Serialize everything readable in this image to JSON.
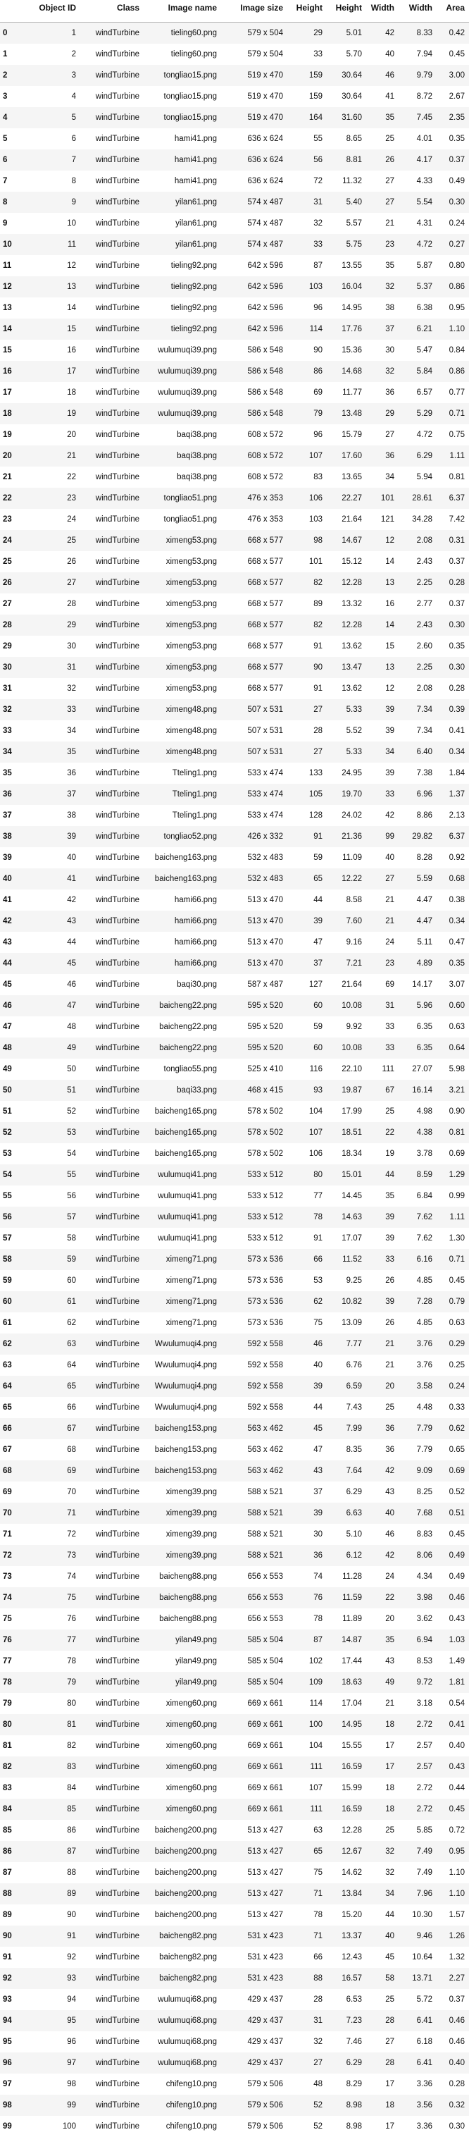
{
  "table": {
    "columns": [
      "",
      "Object ID",
      "Class",
      "Image name",
      "Image size",
      "Height",
      "Height",
      "Width",
      "Width",
      "Area"
    ],
    "rows": [
      [
        "0",
        "1",
        "windTurbine",
        "tieling60.png",
        "579 x 504",
        "29",
        "5.01",
        "42",
        "8.33",
        "0.42"
      ],
      [
        "1",
        "2",
        "windTurbine",
        "tieling60.png",
        "579 x 504",
        "33",
        "5.70",
        "40",
        "7.94",
        "0.45"
      ],
      [
        "2",
        "3",
        "windTurbine",
        "tongliao15.png",
        "519 x 470",
        "159",
        "30.64",
        "46",
        "9.79",
        "3.00"
      ],
      [
        "3",
        "4",
        "windTurbine",
        "tongliao15.png",
        "519 x 470",
        "159",
        "30.64",
        "41",
        "8.72",
        "2.67"
      ],
      [
        "4",
        "5",
        "windTurbine",
        "tongliao15.png",
        "519 x 470",
        "164",
        "31.60",
        "35",
        "7.45",
        "2.35"
      ],
      [
        "5",
        "6",
        "windTurbine",
        "hami41.png",
        "636 x 624",
        "55",
        "8.65",
        "25",
        "4.01",
        "0.35"
      ],
      [
        "6",
        "7",
        "windTurbine",
        "hami41.png",
        "636 x 624",
        "56",
        "8.81",
        "26",
        "4.17",
        "0.37"
      ],
      [
        "7",
        "8",
        "windTurbine",
        "hami41.png",
        "636 x 624",
        "72",
        "11.32",
        "27",
        "4.33",
        "0.49"
      ],
      [
        "8",
        "9",
        "windTurbine",
        "yilan61.png",
        "574 x 487",
        "31",
        "5.40",
        "27",
        "5.54",
        "0.30"
      ],
      [
        "9",
        "10",
        "windTurbine",
        "yilan61.png",
        "574 x 487",
        "32",
        "5.57",
        "21",
        "4.31",
        "0.24"
      ],
      [
        "10",
        "11",
        "windTurbine",
        "yilan61.png",
        "574 x 487",
        "33",
        "5.75",
        "23",
        "4.72",
        "0.27"
      ],
      [
        "11",
        "12",
        "windTurbine",
        "tieling92.png",
        "642 x 596",
        "87",
        "13.55",
        "35",
        "5.87",
        "0.80"
      ],
      [
        "12",
        "13",
        "windTurbine",
        "tieling92.png",
        "642 x 596",
        "103",
        "16.04",
        "32",
        "5.37",
        "0.86"
      ],
      [
        "13",
        "14",
        "windTurbine",
        "tieling92.png",
        "642 x 596",
        "96",
        "14.95",
        "38",
        "6.38",
        "0.95"
      ],
      [
        "14",
        "15",
        "windTurbine",
        "tieling92.png",
        "642 x 596",
        "114",
        "17.76",
        "37",
        "6.21",
        "1.10"
      ],
      [
        "15",
        "16",
        "windTurbine",
        "wulumuqi39.png",
        "586 x 548",
        "90",
        "15.36",
        "30",
        "5.47",
        "0.84"
      ],
      [
        "16",
        "17",
        "windTurbine",
        "wulumuqi39.png",
        "586 x 548",
        "86",
        "14.68",
        "32",
        "5.84",
        "0.86"
      ],
      [
        "17",
        "18",
        "windTurbine",
        "wulumuqi39.png",
        "586 x 548",
        "69",
        "11.77",
        "36",
        "6.57",
        "0.77"
      ],
      [
        "18",
        "19",
        "windTurbine",
        "wulumuqi39.png",
        "586 x 548",
        "79",
        "13.48",
        "29",
        "5.29",
        "0.71"
      ],
      [
        "19",
        "20",
        "windTurbine",
        "baqi38.png",
        "608 x 572",
        "96",
        "15.79",
        "27",
        "4.72",
        "0.75"
      ],
      [
        "20",
        "21",
        "windTurbine",
        "baqi38.png",
        "608 x 572",
        "107",
        "17.60",
        "36",
        "6.29",
        "1.11"
      ],
      [
        "21",
        "22",
        "windTurbine",
        "baqi38.png",
        "608 x 572",
        "83",
        "13.65",
        "34",
        "5.94",
        "0.81"
      ],
      [
        "22",
        "23",
        "windTurbine",
        "tongliao51.png",
        "476 x 353",
        "106",
        "22.27",
        "101",
        "28.61",
        "6.37"
      ],
      [
        "23",
        "24",
        "windTurbine",
        "tongliao51.png",
        "476 x 353",
        "103",
        "21.64",
        "121",
        "34.28",
        "7.42"
      ],
      [
        "24",
        "25",
        "windTurbine",
        "ximeng53.png",
        "668 x 577",
        "98",
        "14.67",
        "12",
        "2.08",
        "0.31"
      ],
      [
        "25",
        "26",
        "windTurbine",
        "ximeng53.png",
        "668 x 577",
        "101",
        "15.12",
        "14",
        "2.43",
        "0.37"
      ],
      [
        "26",
        "27",
        "windTurbine",
        "ximeng53.png",
        "668 x 577",
        "82",
        "12.28",
        "13",
        "2.25",
        "0.28"
      ],
      [
        "27",
        "28",
        "windTurbine",
        "ximeng53.png",
        "668 x 577",
        "89",
        "13.32",
        "16",
        "2.77",
        "0.37"
      ],
      [
        "28",
        "29",
        "windTurbine",
        "ximeng53.png",
        "668 x 577",
        "82",
        "12.28",
        "14",
        "2.43",
        "0.30"
      ],
      [
        "29",
        "30",
        "windTurbine",
        "ximeng53.png",
        "668 x 577",
        "91",
        "13.62",
        "15",
        "2.60",
        "0.35"
      ],
      [
        "30",
        "31",
        "windTurbine",
        "ximeng53.png",
        "668 x 577",
        "90",
        "13.47",
        "13",
        "2.25",
        "0.30"
      ],
      [
        "31",
        "32",
        "windTurbine",
        "ximeng53.png",
        "668 x 577",
        "91",
        "13.62",
        "12",
        "2.08",
        "0.28"
      ],
      [
        "32",
        "33",
        "windTurbine",
        "ximeng48.png",
        "507 x 531",
        "27",
        "5.33",
        "39",
        "7.34",
        "0.39"
      ],
      [
        "33",
        "34",
        "windTurbine",
        "ximeng48.png",
        "507 x 531",
        "28",
        "5.52",
        "39",
        "7.34",
        "0.41"
      ],
      [
        "34",
        "35",
        "windTurbine",
        "ximeng48.png",
        "507 x 531",
        "27",
        "5.33",
        "34",
        "6.40",
        "0.34"
      ],
      [
        "35",
        "36",
        "windTurbine",
        "Tteling1.png",
        "533 x 474",
        "133",
        "24.95",
        "39",
        "7.38",
        "1.84"
      ],
      [
        "36",
        "37",
        "windTurbine",
        "Tteling1.png",
        "533 x 474",
        "105",
        "19.70",
        "33",
        "6.96",
        "1.37"
      ],
      [
        "37",
        "38",
        "windTurbine",
        "Tteling1.png",
        "533 x 474",
        "128",
        "24.02",
        "42",
        "8.86",
        "2.13"
      ],
      [
        "38",
        "39",
        "windTurbine",
        "tongliao52.png",
        "426 x 332",
        "91",
        "21.36",
        "99",
        "29.82",
        "6.37"
      ],
      [
        "39",
        "40",
        "windTurbine",
        "baicheng163.png",
        "532 x 483",
        "59",
        "11.09",
        "40",
        "8.28",
        "0.92"
      ],
      [
        "40",
        "41",
        "windTurbine",
        "baicheng163.png",
        "532 x 483",
        "65",
        "12.22",
        "27",
        "5.59",
        "0.68"
      ],
      [
        "41",
        "42",
        "windTurbine",
        "hami66.png",
        "513 x 470",
        "44",
        "8.58",
        "21",
        "4.47",
        "0.38"
      ],
      [
        "42",
        "43",
        "windTurbine",
        "hami66.png",
        "513 x 470",
        "39",
        "7.60",
        "21",
        "4.47",
        "0.34"
      ],
      [
        "43",
        "44",
        "windTurbine",
        "hami66.png",
        "513 x 470",
        "47",
        "9.16",
        "24",
        "5.11",
        "0.47"
      ],
      [
        "44",
        "45",
        "windTurbine",
        "hami66.png",
        "513 x 470",
        "37",
        "7.21",
        "23",
        "4.89",
        "0.35"
      ],
      [
        "45",
        "46",
        "windTurbine",
        "baqi30.png",
        "587 x 487",
        "127",
        "21.64",
        "69",
        "14.17",
        "3.07"
      ],
      [
        "46",
        "47",
        "windTurbine",
        "baicheng22.png",
        "595 x 520",
        "60",
        "10.08",
        "31",
        "5.96",
        "0.60"
      ],
      [
        "47",
        "48",
        "windTurbine",
        "baicheng22.png",
        "595 x 520",
        "59",
        "9.92",
        "33",
        "6.35",
        "0.63"
      ],
      [
        "48",
        "49",
        "windTurbine",
        "baicheng22.png",
        "595 x 520",
        "60",
        "10.08",
        "33",
        "6.35",
        "0.64"
      ],
      [
        "49",
        "50",
        "windTurbine",
        "tongliao55.png",
        "525 x 410",
        "116",
        "22.10",
        "111",
        "27.07",
        "5.98"
      ],
      [
        "50",
        "51",
        "windTurbine",
        "baqi33.png",
        "468 x 415",
        "93",
        "19.87",
        "67",
        "16.14",
        "3.21"
      ],
      [
        "51",
        "52",
        "windTurbine",
        "baicheng165.png",
        "578 x 502",
        "104",
        "17.99",
        "25",
        "4.98",
        "0.90"
      ],
      [
        "52",
        "53",
        "windTurbine",
        "baicheng165.png",
        "578 x 502",
        "107",
        "18.51",
        "22",
        "4.38",
        "0.81"
      ],
      [
        "53",
        "54",
        "windTurbine",
        "baicheng165.png",
        "578 x 502",
        "106",
        "18.34",
        "19",
        "3.78",
        "0.69"
      ],
      [
        "54",
        "55",
        "windTurbine",
        "wulumuqi41.png",
        "533 x 512",
        "80",
        "15.01",
        "44",
        "8.59",
        "1.29"
      ],
      [
        "55",
        "56",
        "windTurbine",
        "wulumuqi41.png",
        "533 x 512",
        "77",
        "14.45",
        "35",
        "6.84",
        "0.99"
      ],
      [
        "56",
        "57",
        "windTurbine",
        "wulumuqi41.png",
        "533 x 512",
        "78",
        "14.63",
        "39",
        "7.62",
        "1.11"
      ],
      [
        "57",
        "58",
        "windTurbine",
        "wulumuqi41.png",
        "533 x 512",
        "91",
        "17.07",
        "39",
        "7.62",
        "1.30"
      ],
      [
        "58",
        "59",
        "windTurbine",
        "ximeng71.png",
        "573 x 536",
        "66",
        "11.52",
        "33",
        "6.16",
        "0.71"
      ],
      [
        "59",
        "60",
        "windTurbine",
        "ximeng71.png",
        "573 x 536",
        "53",
        "9.25",
        "26",
        "4.85",
        "0.45"
      ],
      [
        "60",
        "61",
        "windTurbine",
        "ximeng71.png",
        "573 x 536",
        "62",
        "10.82",
        "39",
        "7.28",
        "0.79"
      ],
      [
        "61",
        "62",
        "windTurbine",
        "ximeng71.png",
        "573 x 536",
        "75",
        "13.09",
        "26",
        "4.85",
        "0.63"
      ],
      [
        "62",
        "63",
        "windTurbine",
        "Wwulumuqi4.png",
        "592 x 558",
        "46",
        "7.77",
        "21",
        "3.76",
        "0.29"
      ],
      [
        "63",
        "64",
        "windTurbine",
        "Wwulumuqi4.png",
        "592 x 558",
        "40",
        "6.76",
        "21",
        "3.76",
        "0.25"
      ],
      [
        "64",
        "65",
        "windTurbine",
        "Wwulumuqi4.png",
        "592 x 558",
        "39",
        "6.59",
        "20",
        "3.58",
        "0.24"
      ],
      [
        "65",
        "66",
        "windTurbine",
        "Wwulumuqi4.png",
        "592 x 558",
        "44",
        "7.43",
        "25",
        "4.48",
        "0.33"
      ],
      [
        "66",
        "67",
        "windTurbine",
        "baicheng153.png",
        "563 x 462",
        "45",
        "7.99",
        "36",
        "7.79",
        "0.62"
      ],
      [
        "67",
        "68",
        "windTurbine",
        "baicheng153.png",
        "563 x 462",
        "47",
        "8.35",
        "36",
        "7.79",
        "0.65"
      ],
      [
        "68",
        "69",
        "windTurbine",
        "baicheng153.png",
        "563 x 462",
        "43",
        "7.64",
        "42",
        "9.09",
        "0.69"
      ],
      [
        "69",
        "70",
        "windTurbine",
        "ximeng39.png",
        "588 x 521",
        "37",
        "6.29",
        "43",
        "8.25",
        "0.52"
      ],
      [
        "70",
        "71",
        "windTurbine",
        "ximeng39.png",
        "588 x 521",
        "39",
        "6.63",
        "40",
        "7.68",
        "0.51"
      ],
      [
        "71",
        "72",
        "windTurbine",
        "ximeng39.png",
        "588 x 521",
        "30",
        "5.10",
        "46",
        "8.83",
        "0.45"
      ],
      [
        "72",
        "73",
        "windTurbine",
        "ximeng39.png",
        "588 x 521",
        "36",
        "6.12",
        "42",
        "8.06",
        "0.49"
      ],
      [
        "73",
        "74",
        "windTurbine",
        "baicheng88.png",
        "656 x 553",
        "74",
        "11.28",
        "24",
        "4.34",
        "0.49"
      ],
      [
        "74",
        "75",
        "windTurbine",
        "baicheng88.png",
        "656 x 553",
        "76",
        "11.59",
        "22",
        "3.98",
        "0.46"
      ],
      [
        "75",
        "76",
        "windTurbine",
        "baicheng88.png",
        "656 x 553",
        "78",
        "11.89",
        "20",
        "3.62",
        "0.43"
      ],
      [
        "76",
        "77",
        "windTurbine",
        "yilan49.png",
        "585 x 504",
        "87",
        "14.87",
        "35",
        "6.94",
        "1.03"
      ],
      [
        "77",
        "78",
        "windTurbine",
        "yilan49.png",
        "585 x 504",
        "102",
        "17.44",
        "43",
        "8.53",
        "1.49"
      ],
      [
        "78",
        "79",
        "windTurbine",
        "yilan49.png",
        "585 x 504",
        "109",
        "18.63",
        "49",
        "9.72",
        "1.81"
      ],
      [
        "79",
        "80",
        "windTurbine",
        "ximeng60.png",
        "669 x 661",
        "114",
        "17.04",
        "21",
        "3.18",
        "0.54"
      ],
      [
        "80",
        "81",
        "windTurbine",
        "ximeng60.png",
        "669 x 661",
        "100",
        "14.95",
        "18",
        "2.72",
        "0.41"
      ],
      [
        "81",
        "82",
        "windTurbine",
        "ximeng60.png",
        "669 x 661",
        "104",
        "15.55",
        "17",
        "2.57",
        "0.40"
      ],
      [
        "82",
        "83",
        "windTurbine",
        "ximeng60.png",
        "669 x 661",
        "111",
        "16.59",
        "17",
        "2.57",
        "0.43"
      ],
      [
        "83",
        "84",
        "windTurbine",
        "ximeng60.png",
        "669 x 661",
        "107",
        "15.99",
        "18",
        "2.72",
        "0.44"
      ],
      [
        "84",
        "85",
        "windTurbine",
        "ximeng60.png",
        "669 x 661",
        "111",
        "16.59",
        "18",
        "2.72",
        "0.45"
      ],
      [
        "85",
        "86",
        "windTurbine",
        "baicheng200.png",
        "513 x 427",
        "63",
        "12.28",
        "25",
        "5.85",
        "0.72"
      ],
      [
        "86",
        "87",
        "windTurbine",
        "baicheng200.png",
        "513 x 427",
        "65",
        "12.67",
        "32",
        "7.49",
        "0.95"
      ],
      [
        "87",
        "88",
        "windTurbine",
        "baicheng200.png",
        "513 x 427",
        "75",
        "14.62",
        "32",
        "7.49",
        "1.10"
      ],
      [
        "88",
        "89",
        "windTurbine",
        "baicheng200.png",
        "513 x 427",
        "71",
        "13.84",
        "34",
        "7.96",
        "1.10"
      ],
      [
        "89",
        "90",
        "windTurbine",
        "baicheng200.png",
        "513 x 427",
        "78",
        "15.20",
        "44",
        "10.30",
        "1.57"
      ],
      [
        "90",
        "91",
        "windTurbine",
        "baicheng82.png",
        "531 x 423",
        "71",
        "13.37",
        "40",
        "9.46",
        "1.26"
      ],
      [
        "91",
        "92",
        "windTurbine",
        "baicheng82.png",
        "531 x 423",
        "66",
        "12.43",
        "45",
        "10.64",
        "1.32"
      ],
      [
        "92",
        "93",
        "windTurbine",
        "baicheng82.png",
        "531 x 423",
        "88",
        "16.57",
        "58",
        "13.71",
        "2.27"
      ],
      [
        "93",
        "94",
        "windTurbine",
        "wulumuqi68.png",
        "429 x 437",
        "28",
        "6.53",
        "25",
        "5.72",
        "0.37"
      ],
      [
        "94",
        "95",
        "windTurbine",
        "wulumuqi68.png",
        "429 x 437",
        "31",
        "7.23",
        "28",
        "6.41",
        "0.46"
      ],
      [
        "95",
        "96",
        "windTurbine",
        "wulumuqi68.png",
        "429 x 437",
        "32",
        "7.46",
        "27",
        "6.18",
        "0.46"
      ],
      [
        "96",
        "97",
        "windTurbine",
        "wulumuqi68.png",
        "429 x 437",
        "27",
        "6.29",
        "28",
        "6.41",
        "0.40"
      ],
      [
        "97",
        "98",
        "windTurbine",
        "chifeng10.png",
        "579 x 506",
        "48",
        "8.29",
        "17",
        "3.36",
        "0.28"
      ],
      [
        "98",
        "99",
        "windTurbine",
        "chifeng10.png",
        "579 x 506",
        "52",
        "8.98",
        "18",
        "3.56",
        "0.32"
      ],
      [
        "99",
        "100",
        "windTurbine",
        "chifeng10.png",
        "579 x 506",
        "52",
        "8.98",
        "17",
        "3.36",
        "0.30"
      ]
    ]
  }
}
